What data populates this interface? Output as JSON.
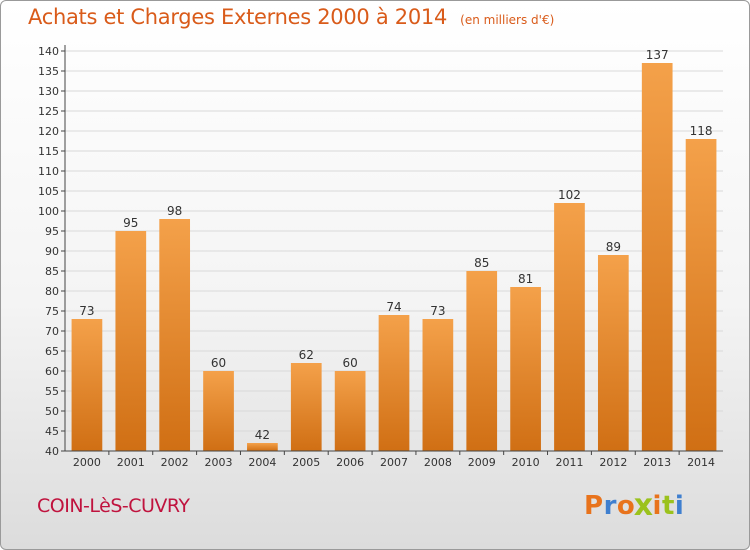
{
  "header": {
    "title": "Achats et Charges Externes 2000 à 2014",
    "unit": "(en milliers d'€)"
  },
  "footer": {
    "commune": "COIN-LèS-CUVRY",
    "logo_text": "Proxiti",
    "logo_colors": [
      "#e8731c",
      "#3f7fcf",
      "#e8731c",
      "#9bc21d",
      "#e8731c",
      "#9bc21d",
      "#3f7fcf"
    ]
  },
  "colors": {
    "bar_top": "#f4a14a",
    "bar_bottom": "#d06f14",
    "title": "#d95b1a",
    "commune": "#c0133e",
    "grid": "#d9d9d9"
  },
  "chart_data": {
    "type": "bar",
    "title": "Achats et Charges Externes 2000 à 2014",
    "subtitle": "(en milliers d'€)",
    "xlabel": "",
    "ylabel": "",
    "categories": [
      "2000",
      "2001",
      "2002",
      "2003",
      "2004",
      "2005",
      "2006",
      "2007",
      "2008",
      "2009",
      "2010",
      "2011",
      "2012",
      "2013",
      "2014"
    ],
    "values": [
      73,
      95,
      98,
      60,
      42,
      62,
      60,
      74,
      73,
      85,
      81,
      102,
      89,
      137,
      118
    ],
    "ylim": [
      40,
      140
    ],
    "yticks": [
      40,
      45,
      50,
      55,
      60,
      65,
      70,
      75,
      80,
      85,
      90,
      95,
      100,
      105,
      110,
      115,
      120,
      125,
      130,
      135,
      140
    ],
    "grid": true,
    "data_labels": true
  }
}
